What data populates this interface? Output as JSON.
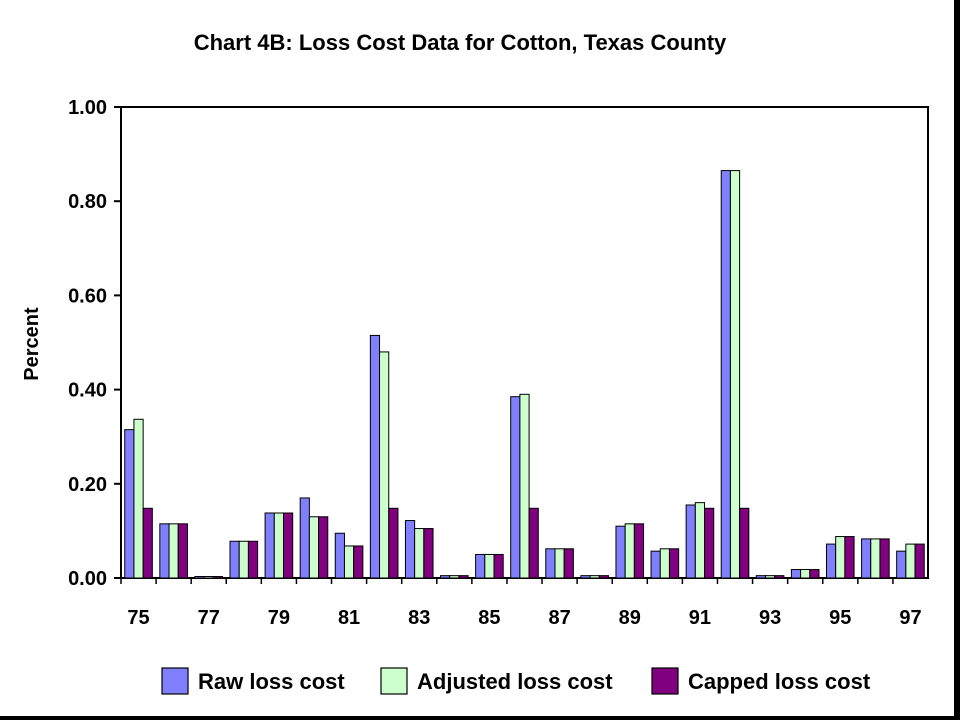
{
  "chart_data": {
    "type": "bar",
    "title": "Chart 4B: Loss Cost Data for Cotton, Texas County",
    "xlabel": "",
    "ylabel": "Percent",
    "ylim": [
      0,
      1.0
    ],
    "yticks": [
      "0.00",
      "0.20",
      "0.40",
      "0.60",
      "0.80",
      "1.00"
    ],
    "ytick_values": [
      0,
      0.2,
      0.4,
      0.6,
      0.8,
      1.0
    ],
    "categories": [
      "75",
      "76",
      "77",
      "78",
      "79",
      "80",
      "81",
      "82",
      "83",
      "84",
      "85",
      "86",
      "87",
      "88",
      "89",
      "90",
      "91",
      "92",
      "93",
      "94",
      "95",
      "96",
      "97"
    ],
    "xtick_labels": [
      "75",
      "77",
      "79",
      "81",
      "83",
      "85",
      "87",
      "89",
      "91",
      "93",
      "95",
      "97"
    ],
    "grid": false,
    "legend_position": "bottom",
    "series": [
      {
        "name": "Raw loss cost",
        "color": "#8080ff",
        "values": [
          0.315,
          0.115,
          0.002,
          0.078,
          0.138,
          0.17,
          0.095,
          0.515,
          0.122,
          0.005,
          0.05,
          0.385,
          0.062,
          0.005,
          0.11,
          0.057,
          0.155,
          0.865,
          0.005,
          0.018,
          0.072,
          0.083,
          0.057
        ]
      },
      {
        "name": "Adjusted loss cost",
        "color": "#ccffcc",
        "values": [
          0.337,
          0.115,
          0.002,
          0.078,
          0.138,
          0.13,
          0.068,
          0.48,
          0.105,
          0.005,
          0.05,
          0.39,
          0.062,
          0.005,
          0.115,
          0.062,
          0.16,
          0.865,
          0.005,
          0.018,
          0.088,
          0.083,
          0.072
        ]
      },
      {
        "name": "Capped loss cost",
        "color": "#800080",
        "values": [
          0.148,
          0.115,
          0.002,
          0.078,
          0.138,
          0.13,
          0.068,
          0.148,
          0.105,
          0.005,
          0.05,
          0.148,
          0.062,
          0.005,
          0.115,
          0.062,
          0.148,
          0.148,
          0.005,
          0.018,
          0.088,
          0.083,
          0.072
        ]
      }
    ]
  }
}
